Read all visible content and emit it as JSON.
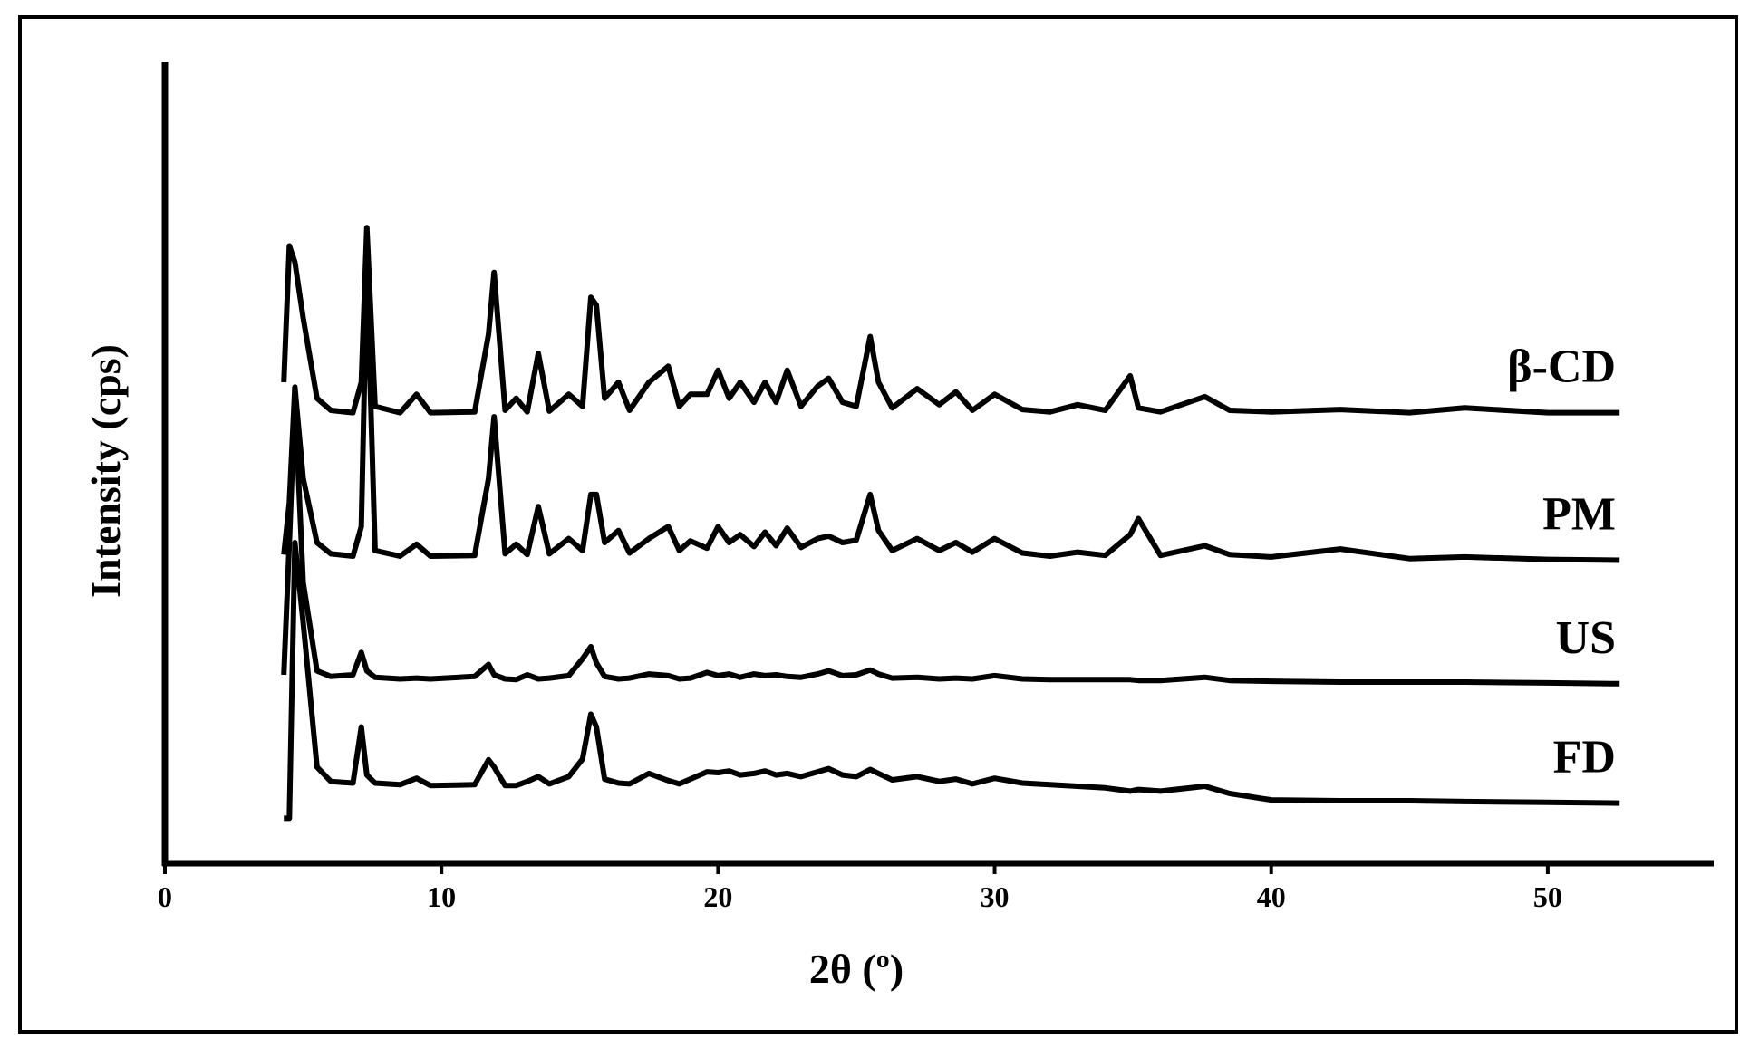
{
  "chart_data": {
    "type": "line",
    "xlabel": "2θ (º)",
    "ylabel": "Intensity (cps)",
    "xlim": [
      0,
      56
    ],
    "xticks": [
      0,
      10,
      20,
      30,
      40,
      50
    ],
    "ylim": [
      0,
      100
    ],
    "x": [
      4.3,
      4.5,
      4.7,
      5.0,
      5.5,
      6.0,
      6.8,
      7.1,
      7.3,
      7.6,
      8.5,
      9.1,
      9.6,
      11.2,
      11.7,
      11.9,
      12.3,
      12.7,
      13.1,
      13.5,
      13.9,
      14.6,
      15.1,
      15.4,
      15.6,
      15.9,
      16.4,
      16.8,
      17.5,
      18.2,
      18.6,
      19.0,
      19.6,
      20.0,
      20.4,
      20.8,
      21.3,
      21.7,
      22.1,
      22.5,
      23.0,
      23.6,
      24.0,
      24.5,
      25.0,
      25.5,
      25.8,
      26.3,
      27.2,
      28.0,
      28.6,
      29.2,
      30.0,
      31.0,
      32.0,
      33.0,
      34.0,
      34.9,
      35.2,
      36.0,
      37.6,
      38.5,
      40.0,
      42.5,
      45.0,
      47.0,
      50.0,
      52.6
    ],
    "series": [
      {
        "name": "β-CD",
        "color": "#000000",
        "values": [
          60,
          77,
          75,
          68,
          58,
          56.5,
          56.2,
          60,
          79.3,
          57,
          56.2,
          58.5,
          56.2,
          56.3,
          66,
          73.7,
          56.5,
          58,
          56.3,
          63.6,
          56.4,
          58.5,
          57,
          70.6,
          69.6,
          58,
          60,
          56.5,
          60,
          62,
          57,
          58.5,
          58.5,
          61.5,
          58,
          60,
          57.5,
          60,
          57.5,
          61.5,
          57,
          59.5,
          60.5,
          57.5,
          57,
          65.7,
          60,
          56.8,
          59.2,
          57.2,
          58.8,
          56.5,
          58.5,
          56.6,
          56.3,
          57.2,
          56.5,
          60.8,
          56.8,
          56.3,
          58.2,
          56.5,
          56.3,
          56.6,
          56.2,
          56.8,
          56.2,
          56.2
        ]
      },
      {
        "name": "PM",
        "color": "#000000",
        "values": [
          38.5,
          45,
          59.4,
          48,
          40,
          38.6,
          38.3,
          42,
          74,
          39,
          38.3,
          39.8,
          38.3,
          38.4,
          48,
          55.7,
          38.6,
          39.8,
          38.5,
          44.5,
          38.6,
          40.5,
          39,
          46,
          46,
          40,
          41.5,
          38.7,
          40.5,
          42,
          39,
          40.2,
          39.3,
          42,
          40,
          41,
          39.5,
          41.3,
          39.6,
          41.8,
          39.4,
          40.5,
          40.8,
          40,
          40.3,
          46,
          41.5,
          39,
          40.5,
          39,
          40,
          38.8,
          40.5,
          38.7,
          38.3,
          38.8,
          38.4,
          41,
          43,
          38.4,
          39.6,
          38.5,
          38.2,
          39.2,
          38,
          38.2,
          37.9,
          37.8
        ]
      },
      {
        "name": "US",
        "color": "#000000",
        "values": [
          23.5,
          40,
          58,
          35,
          24,
          23.3,
          23.5,
          26.3,
          24,
          23.2,
          23,
          23.1,
          23,
          23.3,
          24.8,
          23.5,
          23,
          22.9,
          23.5,
          23,
          23.1,
          23.4,
          25.5,
          27,
          25,
          23.3,
          23,
          23.1,
          23.6,
          23.4,
          23,
          23.1,
          23.8,
          23.4,
          23.6,
          23.2,
          23.6,
          23.4,
          23.5,
          23.3,
          23.2,
          23.6,
          24,
          23.4,
          23.5,
          24.1,
          23.6,
          23.1,
          23.2,
          23,
          23.1,
          23,
          23.4,
          23,
          22.9,
          22.9,
          22.9,
          22.9,
          22.8,
          22.8,
          23.2,
          22.8,
          22.7,
          22.6,
          22.6,
          22.6,
          22.5,
          22.4
        ]
      },
      {
        "name": "FD",
        "color": "#000000",
        "values": [
          5.6,
          5.6,
          40,
          30,
          12,
          10.2,
          10,
          17,
          11,
          10,
          9.8,
          10.6,
          9.7,
          9.8,
          12.9,
          12,
          9.7,
          9.7,
          10.2,
          10.8,
          9.9,
          10.8,
          13,
          18.6,
          17,
          10.5,
          10,
          9.9,
          11.2,
          10.3,
          9.9,
          10.5,
          11.4,
          11.3,
          11.5,
          11,
          11.2,
          11.5,
          11,
          11.2,
          10.8,
          11.4,
          11.8,
          11,
          10.8,
          11.7,
          11.2,
          10.4,
          10.8,
          10.2,
          10.5,
          9.9,
          10.6,
          10,
          9.8,
          9.6,
          9.4,
          9,
          9.2,
          9,
          9.6,
          8.7,
          7.9,
          7.8,
          7.8,
          7.7,
          7.6,
          7.5
        ]
      }
    ]
  }
}
